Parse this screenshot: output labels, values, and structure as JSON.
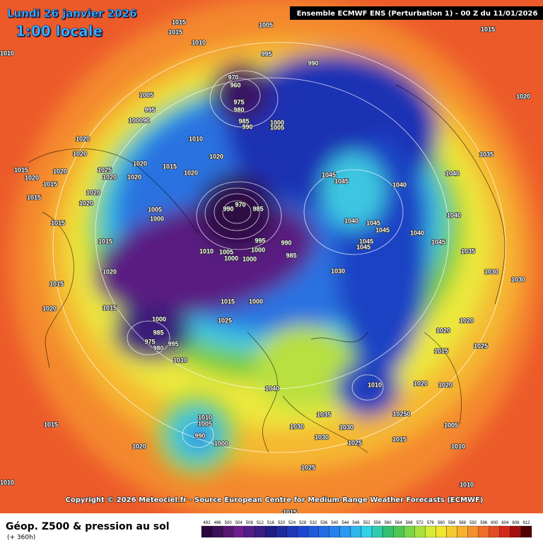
{
  "header": {
    "date": "Lundi 26 janvier 2026",
    "time": "1:00 locale",
    "model": "Ensemble ECMWF ENS  (Perturbation 1)  -  00 Z du 11/01/2026"
  },
  "copyright": "Copyright © 2026 Meteociel.fr - Source European Centre for Medium-Range Weather Forecasts (ECMWF)",
  "legend": {
    "title": "Géop. Z500 & pression au sol",
    "lead": "(+ 360h)",
    "colorbar_ticks": [
      492,
      496,
      500,
      504,
      508,
      512,
      516,
      520,
      524,
      528,
      532,
      536,
      540,
      544,
      548,
      552,
      556,
      560,
      564,
      568,
      572,
      576,
      580,
      584,
      588,
      592,
      596,
      600,
      604,
      608,
      612
    ]
  },
  "pressure_labels": [
    1015,
    1015,
    1005,
    1010,
    1015,
    1010,
    995,
    990,
    970,
    960,
    1005,
    995,
    100090,
    975,
    980,
    985,
    990,
    1000,
    1005,
    1020,
    1010,
    1020,
    1020,
    1020,
    1020,
    1015,
    1025,
    1015,
    1020,
    1020,
    1015,
    1020,
    1020,
    1020,
    1045,
    1045,
    1035,
    1040,
    1040,
    1015,
    1020,
    1020,
    970,
    990,
    985,
    1005,
    1000,
    1015,
    1040,
    1045,
    1045,
    1040,
    1040,
    1015,
    995,
    990,
    1000,
    1010,
    1005,
    1000,
    1000,
    985,
    1045,
    1045,
    1045,
    1035,
    1020,
    1030,
    1030,
    1015,
    1030,
    1015,
    1020,
    1015,
    1000,
    1025,
    1020,
    1020,
    1000,
    985,
    975,
    980,
    995,
    1010,
    1025,
    1015,
    1010,
    1020,
    1020,
    1040,
    1035,
    10250,
    1030,
    1030,
    1005,
    1015,
    1010,
    1005,
    990,
    1000,
    1020,
    1030,
    1025,
    1015,
    1010,
    1025,
    1010,
    1010,
    1015
  ]
}
